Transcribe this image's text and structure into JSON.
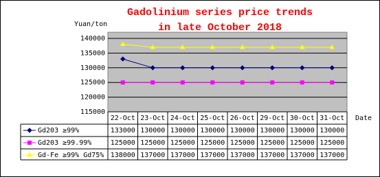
{
  "chart_data": {
    "type": "line",
    "title": "Gadolinium series price trends",
    "subtitle": "in late October 2018",
    "y_label": "Yuan/ton",
    "x_label": "Date",
    "categories": [
      "22-Oct",
      "23-Oct",
      "24-Oct",
      "25-Oct",
      "26-Oct",
      "29-Oct",
      "30-Oct",
      "31-Oct"
    ],
    "series": [
      {
        "name": "Gd203 ≥99%",
        "color": "#000080",
        "marker": "diamond",
        "values": [
          133000,
          130000,
          130000,
          130000,
          130000,
          130000,
          130000,
          130000
        ]
      },
      {
        "name": "Gd203 ≥99.99%",
        "color": "#ff00ff",
        "marker": "square",
        "values": [
          125000,
          125000,
          125000,
          125000,
          125000,
          125000,
          125000,
          125000
        ]
      },
      {
        "name": "Gd-Fe ≥99% Gd75%",
        "color": "#ffff00",
        "marker": "triangle",
        "values": [
          138000,
          137000,
          137000,
          137000,
          137000,
          137000,
          137000,
          137000
        ]
      }
    ],
    "ylim": [
      115000,
      140000
    ],
    "yticks": [
      115000,
      120000,
      125000,
      130000,
      135000,
      140000
    ],
    "grid": true,
    "plot_background": "#c0c0c0"
  }
}
